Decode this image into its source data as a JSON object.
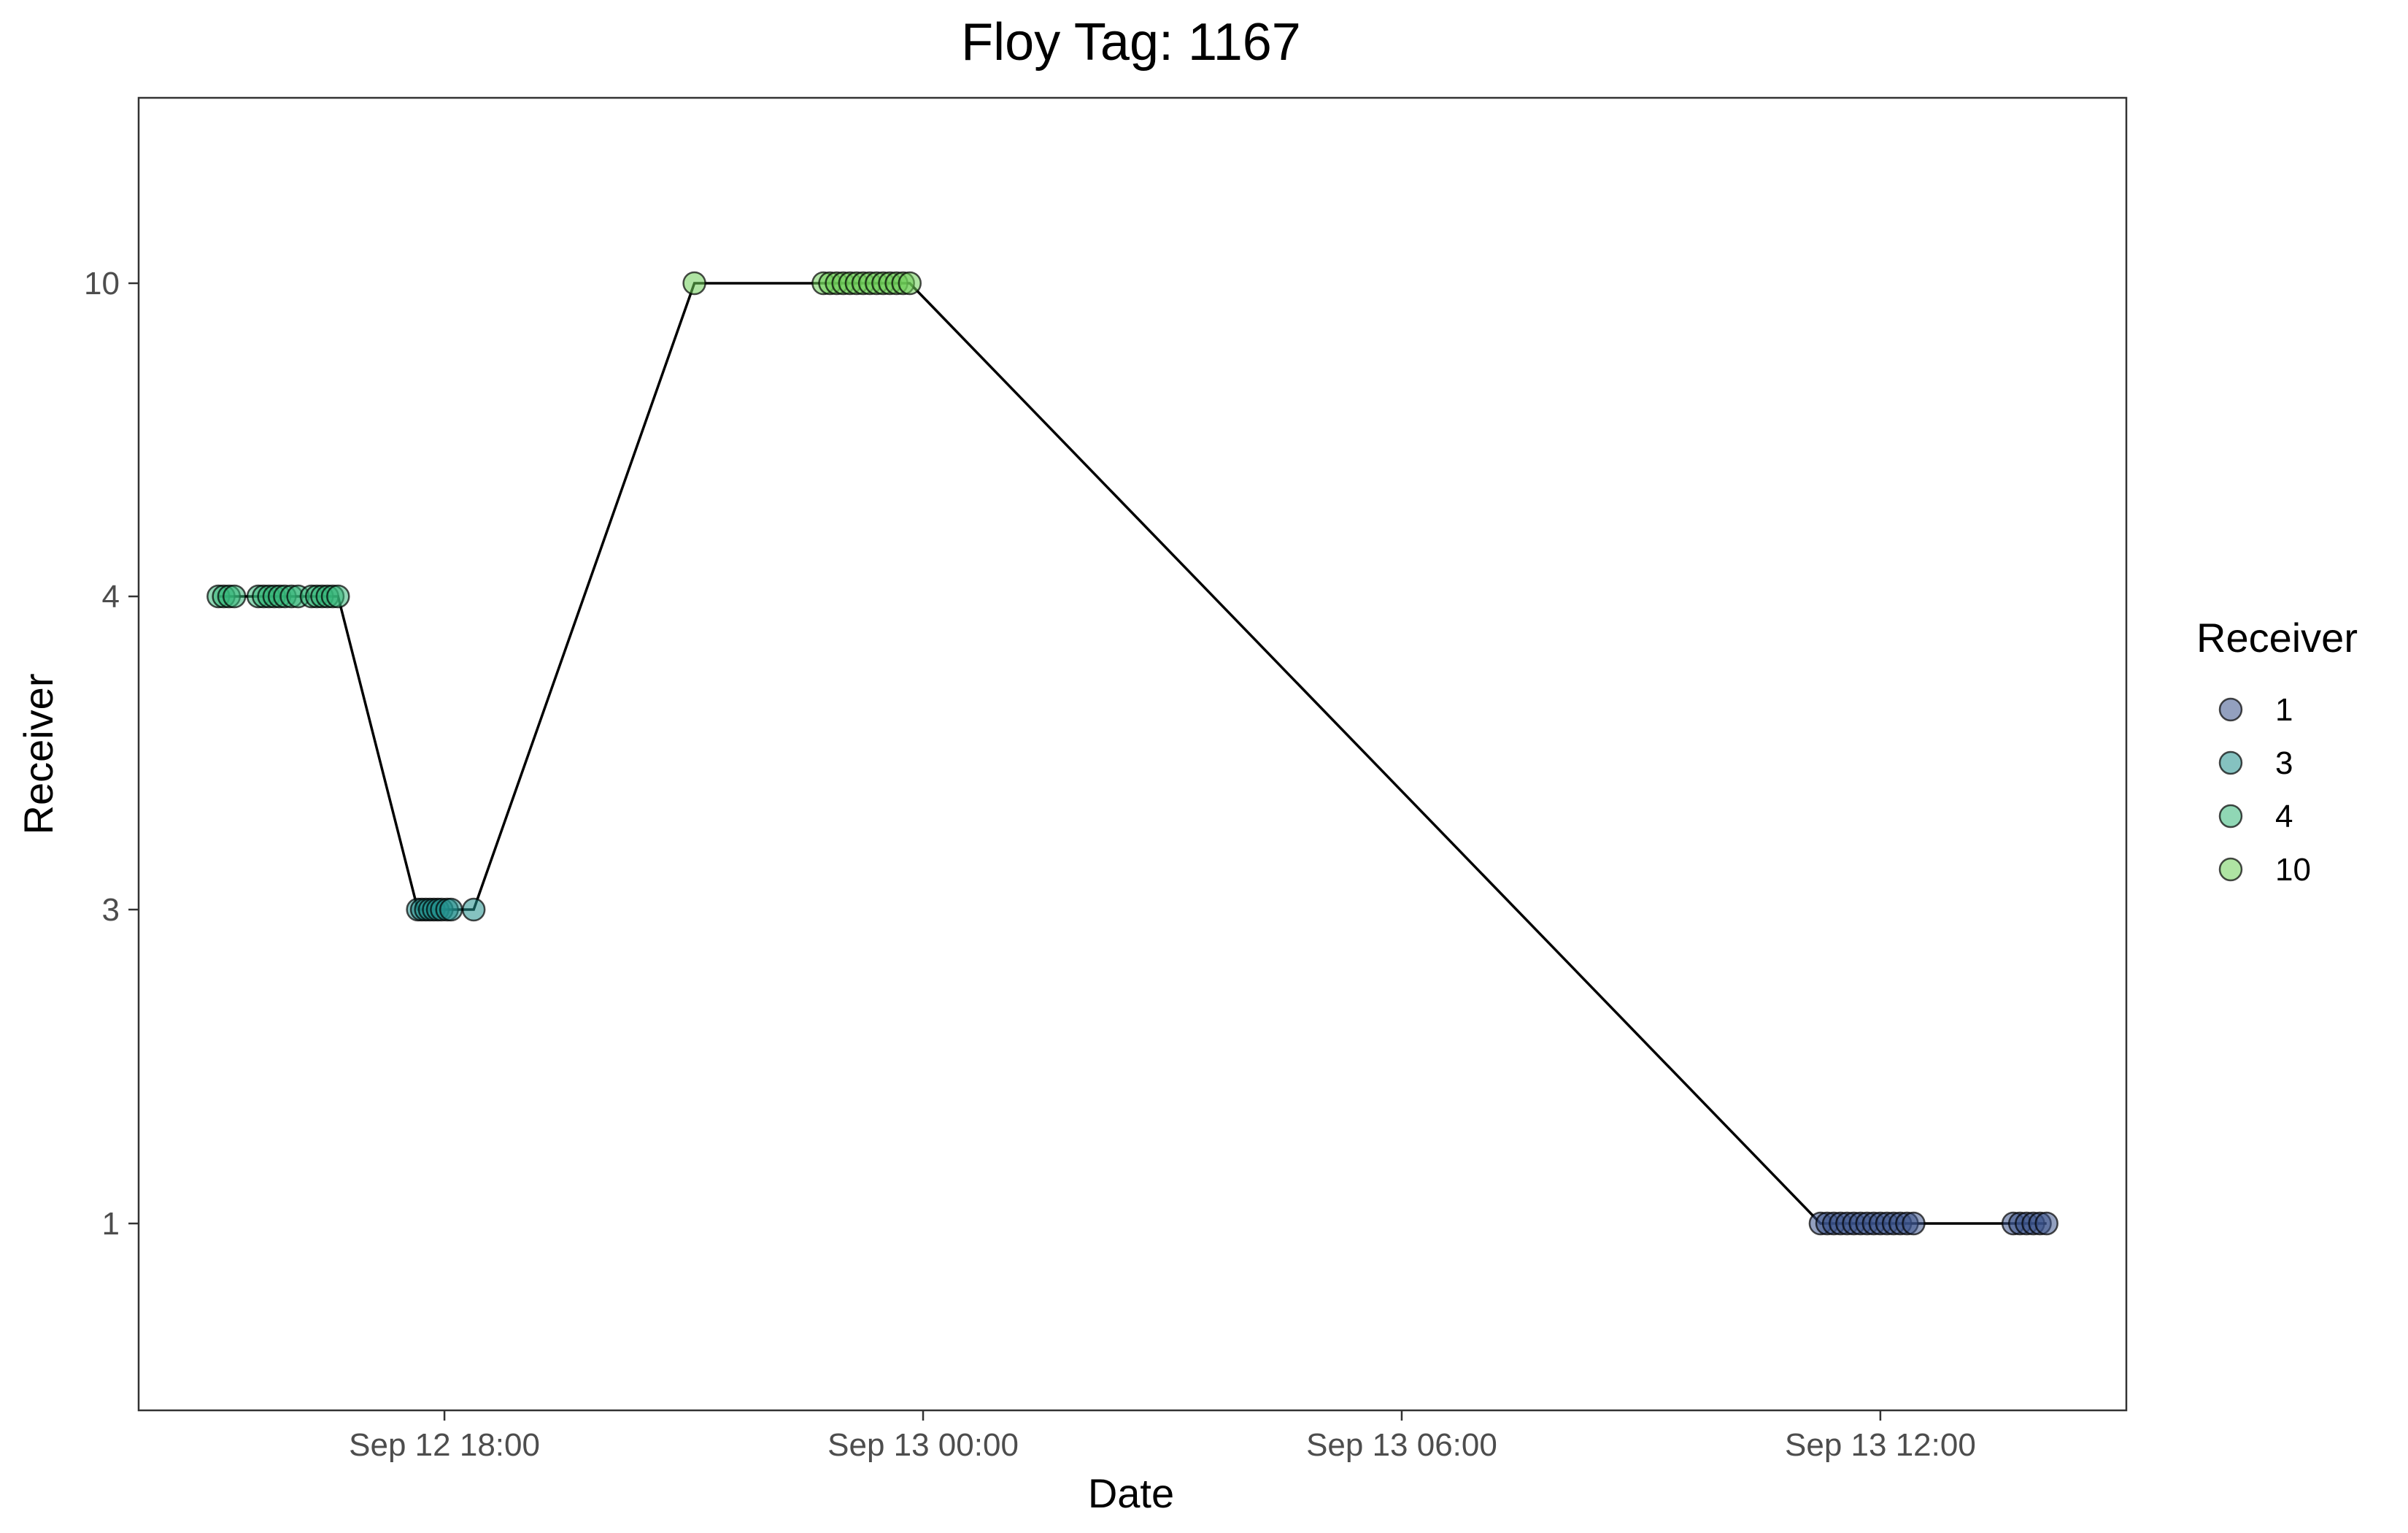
{
  "chart_data": {
    "type": "scatter",
    "title": "Floy Tag: 1167",
    "xlabel": "Date",
    "ylabel": "Receiver",
    "x_unit": "datetime",
    "xlim": [
      "2021-09-12T14:10",
      "2021-09-13T15:05"
    ],
    "x_ticks": [
      {
        "value": "2021-09-12T18:00",
        "label": "Sep 12 18:00"
      },
      {
        "value": "2021-09-13T00:00",
        "label": "Sep 13 00:00"
      },
      {
        "value": "2021-09-13T06:00",
        "label": "Sep 13 06:00"
      },
      {
        "value": "2021-09-13T12:00",
        "label": "Sep 13 12:00"
      }
    ],
    "y_scale": "discrete",
    "y_categories": [
      "1",
      "3",
      "4",
      "10"
    ],
    "grid": false,
    "legend": {
      "title": "Receiver",
      "position": "right",
      "entries": [
        "1",
        "3",
        "4",
        "10"
      ]
    },
    "colors": {
      "1": "#3b528b",
      "3": "#21908d",
      "4": "#35b779",
      "10": "#6ece58",
      "line": "#000000",
      "frame": "#333333"
    },
    "connecting_line": true,
    "points": [
      {
        "t": "2021-09-12T15:10",
        "r": "4"
      },
      {
        "t": "2021-09-12T15:14",
        "r": "4"
      },
      {
        "t": "2021-09-12T15:18",
        "r": "4"
      },
      {
        "t": "2021-09-12T15:22",
        "r": "4"
      },
      {
        "t": "2021-09-12T15:40",
        "r": "4"
      },
      {
        "t": "2021-09-12T15:44",
        "r": "4"
      },
      {
        "t": "2021-09-12T15:48",
        "r": "4"
      },
      {
        "t": "2021-09-12T15:52",
        "r": "4"
      },
      {
        "t": "2021-09-12T15:56",
        "r": "4"
      },
      {
        "t": "2021-09-12T16:00",
        "r": "4"
      },
      {
        "t": "2021-09-12T16:05",
        "r": "4"
      },
      {
        "t": "2021-09-12T16:10",
        "r": "4"
      },
      {
        "t": "2021-09-12T16:20",
        "r": "4"
      },
      {
        "t": "2021-09-12T16:24",
        "r": "4"
      },
      {
        "t": "2021-09-12T16:28",
        "r": "4"
      },
      {
        "t": "2021-09-12T16:32",
        "r": "4"
      },
      {
        "t": "2021-09-12T16:36",
        "r": "4"
      },
      {
        "t": "2021-09-12T16:40",
        "r": "4"
      },
      {
        "t": "2021-09-12T17:40",
        "r": "3"
      },
      {
        "t": "2021-09-12T17:43",
        "r": "3"
      },
      {
        "t": "2021-09-12T17:46",
        "r": "3"
      },
      {
        "t": "2021-09-12T17:49",
        "r": "3"
      },
      {
        "t": "2021-09-12T17:52",
        "r": "3"
      },
      {
        "t": "2021-09-12T17:55",
        "r": "3"
      },
      {
        "t": "2021-09-12T17:58",
        "r": "3"
      },
      {
        "t": "2021-09-12T18:02",
        "r": "3"
      },
      {
        "t": "2021-09-12T18:05",
        "r": "3"
      },
      {
        "t": "2021-09-12T18:22",
        "r": "3"
      },
      {
        "t": "2021-09-12T21:08",
        "r": "10"
      },
      {
        "t": "2021-09-12T22:45",
        "r": "10"
      },
      {
        "t": "2021-09-12T22:50",
        "r": "10"
      },
      {
        "t": "2021-09-12T22:55",
        "r": "10"
      },
      {
        "t": "2021-09-12T23:00",
        "r": "10"
      },
      {
        "t": "2021-09-12T23:05",
        "r": "10"
      },
      {
        "t": "2021-09-12T23:10",
        "r": "10"
      },
      {
        "t": "2021-09-12T23:15",
        "r": "10"
      },
      {
        "t": "2021-09-12T23:20",
        "r": "10"
      },
      {
        "t": "2021-09-12T23:25",
        "r": "10"
      },
      {
        "t": "2021-09-12T23:30",
        "r": "10"
      },
      {
        "t": "2021-09-12T23:35",
        "r": "10"
      },
      {
        "t": "2021-09-12T23:40",
        "r": "10"
      },
      {
        "t": "2021-09-12T23:45",
        "r": "10"
      },
      {
        "t": "2021-09-12T23:50",
        "r": "10"
      },
      {
        "t": "2021-09-13T11:15",
        "r": "1"
      },
      {
        "t": "2021-09-13T11:20",
        "r": "1"
      },
      {
        "t": "2021-09-13T11:25",
        "r": "1"
      },
      {
        "t": "2021-09-13T11:30",
        "r": "1"
      },
      {
        "t": "2021-09-13T11:35",
        "r": "1"
      },
      {
        "t": "2021-09-13T11:40",
        "r": "1"
      },
      {
        "t": "2021-09-13T11:45",
        "r": "1"
      },
      {
        "t": "2021-09-13T11:50",
        "r": "1"
      },
      {
        "t": "2021-09-13T11:55",
        "r": "1"
      },
      {
        "t": "2021-09-13T12:00",
        "r": "1"
      },
      {
        "t": "2021-09-13T12:05",
        "r": "1"
      },
      {
        "t": "2021-09-13T12:10",
        "r": "1"
      },
      {
        "t": "2021-09-13T12:15",
        "r": "1"
      },
      {
        "t": "2021-09-13T12:20",
        "r": "1"
      },
      {
        "t": "2021-09-13T12:25",
        "r": "1"
      },
      {
        "t": "2021-09-13T13:40",
        "r": "1"
      },
      {
        "t": "2021-09-13T13:45",
        "r": "1"
      },
      {
        "t": "2021-09-13T13:50",
        "r": "1"
      },
      {
        "t": "2021-09-13T13:55",
        "r": "1"
      },
      {
        "t": "2021-09-13T14:00",
        "r": "1"
      },
      {
        "t": "2021-09-13T14:05",
        "r": "1"
      }
    ]
  }
}
